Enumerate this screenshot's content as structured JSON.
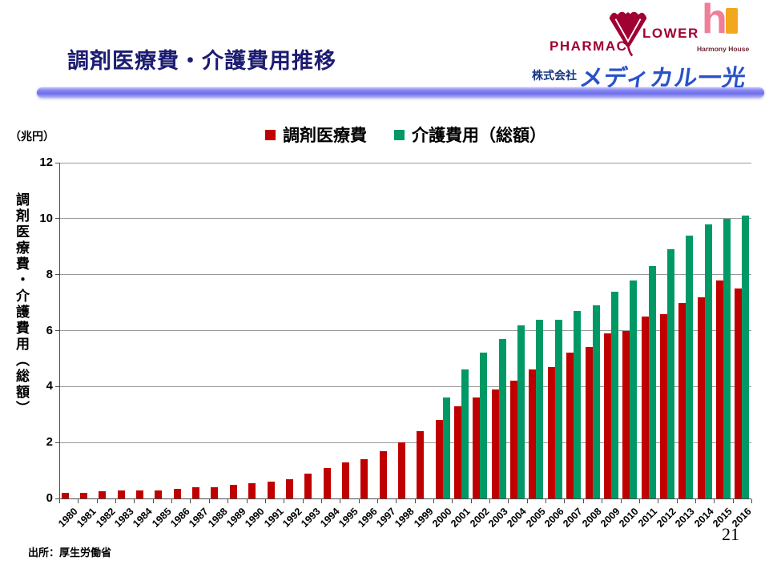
{
  "slide": {
    "title": "調剤医療費・介護費用推移",
    "source": "出所：厚生労働省",
    "page_number": "21"
  },
  "logos": {
    "pharmacy_flower": {
      "left_text": "PHARMAC",
      "right_text": "LOWER",
      "color": "#a00032"
    },
    "harmony_house": {
      "label": "Harmony House",
      "h_letter": "h",
      "h_color": "#ef7f99",
      "accent_color": "#f2a71d"
    },
    "company": {
      "prefix": "株式会社",
      "name": "メディカル一光",
      "color": "#2952c8"
    }
  },
  "chart_data": {
    "type": "bar",
    "unit_label": "（兆円）",
    "y_axis_title": "調剤医療費・介護費用（総額）",
    "ylim": [
      0,
      12
    ],
    "y_ticks": [
      0,
      2,
      4,
      6,
      8,
      10,
      12
    ],
    "grid": true,
    "legend_position": "top",
    "categories": [
      1980,
      1981,
      1982,
      1983,
      1984,
      1985,
      1986,
      1987,
      1988,
      1989,
      1990,
      1991,
      1992,
      1993,
      1994,
      1995,
      1996,
      1997,
      1998,
      1999,
      2000,
      2001,
      2002,
      2003,
      2004,
      2005,
      2006,
      2007,
      2008,
      2009,
      2010,
      2011,
      2012,
      2013,
      2014,
      2015,
      2016
    ],
    "series": [
      {
        "name": "調剤医療費",
        "color": "#c00000",
        "values": [
          0.2,
          0.2,
          0.25,
          0.3,
          0.3,
          0.3,
          0.35,
          0.4,
          0.4,
          0.5,
          0.55,
          0.6,
          0.7,
          0.9,
          1.1,
          1.3,
          1.4,
          1.7,
          2.0,
          2.4,
          2.8,
          3.3,
          3.6,
          3.9,
          4.2,
          4.6,
          4.7,
          5.2,
          5.4,
          5.9,
          6.0,
          6.5,
          6.6,
          7.0,
          7.2,
          7.8,
          7.5
        ]
      },
      {
        "name": "介護費用（総額）",
        "color": "#009966",
        "values": [
          null,
          null,
          null,
          null,
          null,
          null,
          null,
          null,
          null,
          null,
          null,
          null,
          null,
          null,
          null,
          null,
          null,
          null,
          null,
          null,
          3.6,
          4.6,
          5.2,
          5.7,
          6.2,
          6.4,
          6.4,
          6.7,
          6.9,
          7.4,
          7.8,
          8.3,
          8.9,
          9.4,
          9.8,
          10.0,
          10.1
        ]
      }
    ]
  }
}
